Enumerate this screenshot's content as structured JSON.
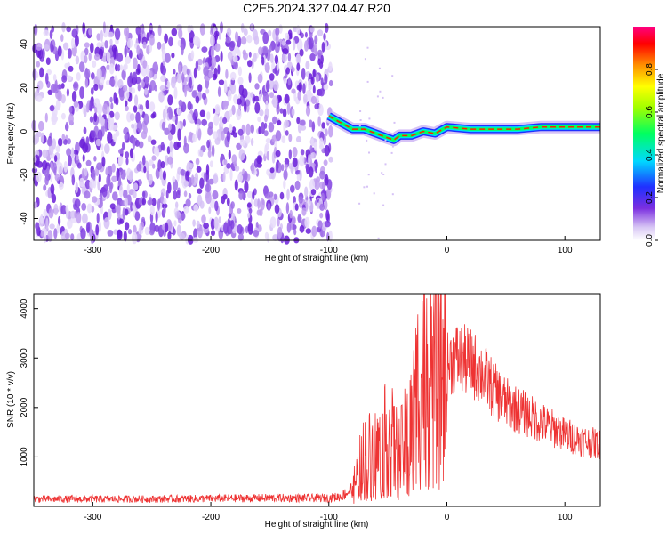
{
  "title": "C2E5.2024.327.04.47.R20",
  "chart_data": [
    {
      "type": "heatmap",
      "xlabel": "Height of straight line (km)",
      "ylabel": "Frequency (Hz)",
      "xlim": [
        -350,
        130
      ],
      "ylim": [
        -50,
        48
      ],
      "x_ticks": [
        -300,
        -200,
        -100,
        0,
        100
      ],
      "y_ticks": [
        -40,
        -20,
        0,
        20,
        40
      ],
      "colorbar": {
        "label": "Normalized spectral amplitude",
        "range": [
          0,
          1
        ],
        "ticks": [
          0.0,
          0.2,
          0.4,
          0.6,
          0.8
        ],
        "tick_labels": [
          "0.0",
          "0.2",
          "0.4",
          "0.6",
          "0.8"
        ]
      },
      "noise_region_x": [
        -350,
        -98
      ],
      "signal_trace": [
        {
          "x": -100,
          "y": 7
        },
        {
          "x": -90,
          "y": 4
        },
        {
          "x": -80,
          "y": 1
        },
        {
          "x": -70,
          "y": 1
        },
        {
          "x": -60,
          "y": -1
        },
        {
          "x": -50,
          "y": -3
        },
        {
          "x": -45,
          "y": -4
        },
        {
          "x": -40,
          "y": -2
        },
        {
          "x": -30,
          "y": -2
        },
        {
          "x": -20,
          "y": 0
        },
        {
          "x": -10,
          "y": -1
        },
        {
          "x": 0,
          "y": 2
        },
        {
          "x": 20,
          "y": 1
        },
        {
          "x": 40,
          "y": 1
        },
        {
          "x": 60,
          "y": 1
        },
        {
          "x": 80,
          "y": 2
        },
        {
          "x": 100,
          "y": 2
        },
        {
          "x": 130,
          "y": 2
        }
      ],
      "grid": false
    },
    {
      "type": "line",
      "xlabel": "Height of straight line (km)",
      "ylabel": "SNR (10 * v/v)",
      "xlim": [
        -350,
        130
      ],
      "ylim": [
        0,
        4300
      ],
      "x_ticks": [
        -300,
        -200,
        -100,
        0,
        100
      ],
      "y_ticks": [
        1000,
        2000,
        3000,
        4000
      ],
      "color": "#ee3333",
      "series": [
        {
          "x": [
            -350,
            -300,
            -250,
            -200,
            -150,
            -100,
            -90,
            -80,
            -75,
            -70,
            -60,
            -55,
            -50,
            -45,
            -40,
            -35,
            -30,
            -25,
            -20,
            -15,
            -10,
            -5,
            0,
            5,
            10,
            20,
            30,
            40,
            50,
            60,
            80,
            100,
            120,
            130
          ],
          "values": [
            150,
            150,
            150,
            160,
            170,
            170,
            200,
            350,
            700,
            1000,
            1100,
            1100,
            1500,
            1200,
            1000,
            1300,
            1600,
            2300,
            3100,
            2800,
            2600,
            2700,
            2800,
            3000,
            3000,
            2900,
            2700,
            2350,
            2100,
            1950,
            1700,
            1450,
            1300,
            1250
          ]
        }
      ],
      "grid": false
    }
  ]
}
